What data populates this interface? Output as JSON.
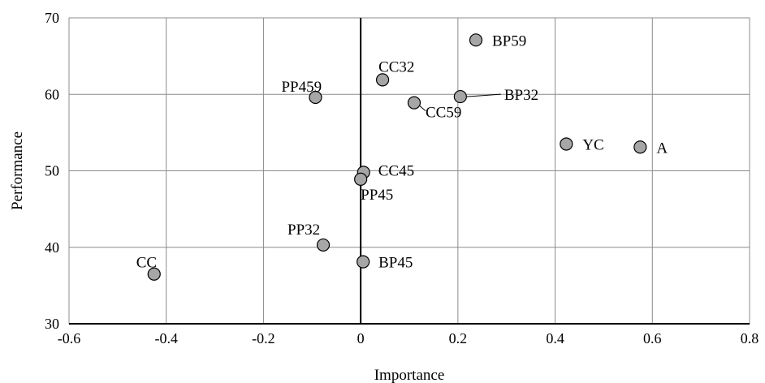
{
  "chart_data": {
    "type": "scatter",
    "xlabel": "Importance",
    "ylabel": "Performance",
    "xlim": [
      -0.6,
      0.8
    ],
    "ylim": [
      30,
      70
    ],
    "xticks": [
      -0.6,
      -0.4,
      -0.2,
      0,
      0.2,
      0.4,
      0.6,
      0.8
    ],
    "yticks": [
      30,
      40,
      50,
      60,
      70
    ],
    "xtick_labels": [
      "-0.6",
      "-0.4",
      "-0.2",
      "0",
      "0.2",
      "0.4",
      "0.6",
      "0.8"
    ],
    "ytick_labels": [
      "30",
      "40",
      "50",
      "60",
      "70"
    ],
    "grid": true,
    "points": [
      {
        "label": "BP59",
        "x": 0.237,
        "y": 67.1
      },
      {
        "label": "CC32",
        "x": 0.045,
        "y": 61.9
      },
      {
        "label": "PP459",
        "x": -0.093,
        "y": 59.6
      },
      {
        "label": "BP32",
        "x": 0.205,
        "y": 59.7
      },
      {
        "label": "CC59",
        "x": 0.11,
        "y": 58.9
      },
      {
        "label": "YC",
        "x": 0.423,
        "y": 53.5
      },
      {
        "label": "A",
        "x": 0.575,
        "y": 53.1
      },
      {
        "label": "CC45",
        "x": 0.006,
        "y": 49.8
      },
      {
        "label": "PP45",
        "x": 0.0,
        "y": 48.9
      },
      {
        "label": "PP32",
        "x": -0.077,
        "y": 40.3
      },
      {
        "label": "CC",
        "x": -0.425,
        "y": 36.5
      },
      {
        "label": "BP45",
        "x": 0.005,
        "y": 38.1
      }
    ]
  }
}
